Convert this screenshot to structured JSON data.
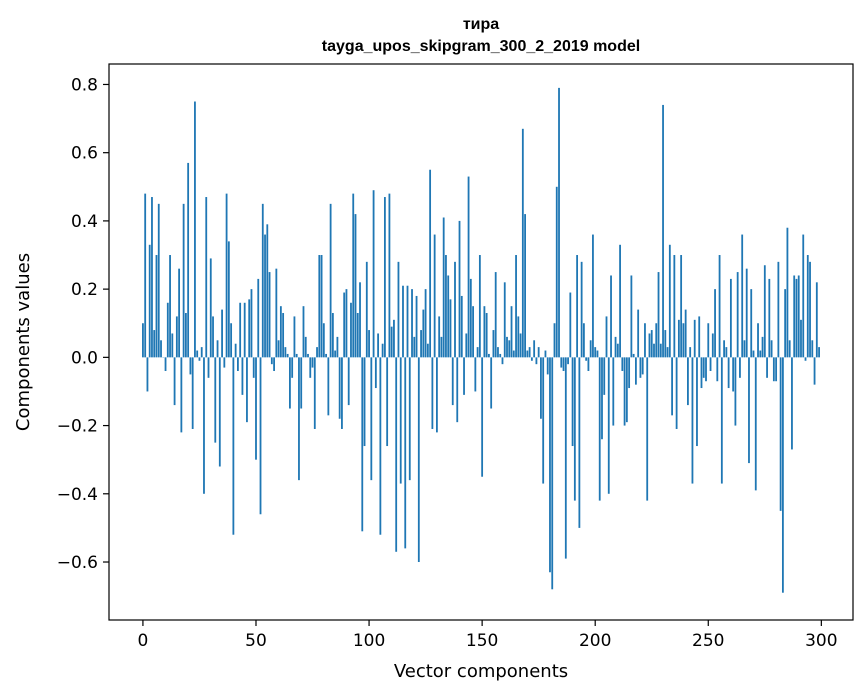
{
  "chart_data": {
    "type": "bar",
    "title": "тира",
    "subtitle": "tayga_upos_skipgram_300_2_2019 model",
    "xlabel": "Vector components",
    "ylabel": "Components values",
    "xlim": [
      -15,
      314
    ],
    "ylim": [
      -0.77,
      0.86
    ],
    "xticks": [
      0,
      50,
      100,
      150,
      200,
      250,
      300
    ],
    "yticks": [
      -0.6,
      -0.4,
      -0.2,
      0.0,
      0.2,
      0.4,
      0.6,
      0.8
    ],
    "ytick_labels": [
      "−0.6",
      "−0.4",
      "−0.2",
      "0.0",
      "0.2",
      "0.4",
      "0.6",
      "0.8"
    ],
    "bar_color": "#1f77b4",
    "grid": false,
    "legend": "none",
    "values": [
      0.1,
      0.48,
      -0.1,
      0.33,
      0.47,
      0.08,
      0.3,
      0.45,
      0.05,
      0.0,
      -0.04,
      0.16,
      0.3,
      0.07,
      -0.14,
      0.12,
      0.26,
      -0.22,
      0.45,
      0.13,
      0.57,
      -0.05,
      -0.21,
      0.75,
      0.02,
      -0.01,
      0.03,
      -0.4,
      0.47,
      -0.06,
      0.29,
      0.12,
      -0.25,
      0.05,
      -0.32,
      0.14,
      -0.03,
      0.48,
      0.34,
      0.1,
      -0.52,
      0.04,
      -0.04,
      0.16,
      -0.11,
      0.16,
      -0.19,
      0.17,
      0.2,
      -0.06,
      -0.3,
      0.23,
      -0.46,
      0.45,
      0.36,
      0.39,
      0.25,
      -0.02,
      -0.04,
      0.26,
      0.05,
      0.15,
      0.13,
      0.03,
      0.01,
      -0.15,
      -0.06,
      0.12,
      0.01,
      -0.36,
      -0.15,
      0.15,
      0.06,
      0.01,
      -0.06,
      -0.03,
      -0.21,
      0.03,
      0.3,
      0.3,
      0.1,
      0.01,
      -0.17,
      0.45,
      0.13,
      0.02,
      0.06,
      -0.18,
      -0.21,
      0.19,
      0.2,
      -0.14,
      0.16,
      0.48,
      0.42,
      0.13,
      0.22,
      -0.51,
      -0.26,
      0.28,
      0.08,
      -0.36,
      0.49,
      -0.09,
      0.07,
      -0.52,
      0.04,
      0.47,
      -0.26,
      0.48,
      0.09,
      0.11,
      -0.57,
      0.28,
      -0.37,
      0.21,
      -0.56,
      0.21,
      -0.36,
      0.2,
      0.06,
      0.18,
      -0.6,
      0.08,
      0.14,
      0.2,
      0.04,
      0.55,
      -0.21,
      0.36,
      -0.22,
      0.12,
      0.06,
      0.41,
      0.3,
      0.24,
      0.17,
      -0.14,
      0.28,
      -0.19,
      0.4,
      0.18,
      -0.11,
      0.07,
      0.53,
      0.23,
      0.15,
      -0.1,
      0.03,
      0.3,
      -0.35,
      0.15,
      0.13,
      0.01,
      -0.15,
      0.08,
      0.25,
      0.03,
      0.01,
      -0.02,
      0.22,
      0.06,
      0.05,
      0.15,
      0.02,
      0.3,
      0.12,
      0.07,
      0.67,
      0.42,
      0.02,
      0.03,
      -0.01,
      0.05,
      -0.02,
      0.03,
      -0.18,
      -0.37,
      0.02,
      -0.05,
      -0.63,
      -0.68,
      0.1,
      0.5,
      0.79,
      -0.03,
      -0.04,
      -0.59,
      -0.02,
      0.19,
      -0.26,
      -0.42,
      0.3,
      -0.5,
      0.28,
      0.1,
      -0.01,
      -0.04,
      0.05,
      0.36,
      0.03,
      0.02,
      -0.42,
      -0.24,
      -0.11,
      0.12,
      -0.4,
      0.24,
      -0.2,
      0.06,
      0.04,
      0.33,
      -0.04,
      -0.2,
      -0.19,
      -0.09,
      0.24,
      0.01,
      -0.08,
      0.14,
      -0.06,
      -0.05,
      0.1,
      -0.42,
      0.07,
      0.08,
      0.04,
      0.1,
      0.25,
      0.04,
      0.74,
      0.08,
      0.03,
      0.33,
      -0.17,
      0.3,
      -0.21,
      0.11,
      0.3,
      0.1,
      0.14,
      -0.14,
      0.03,
      -0.37,
      0.11,
      -0.26,
      0.12,
      -0.09,
      -0.06,
      -0.07,
      0.1,
      -0.04,
      0.07,
      0.2,
      -0.07,
      0.3,
      -0.37,
      0.05,
      0.03,
      -0.09,
      0.23,
      -0.1,
      -0.2,
      0.25,
      -0.06,
      0.36,
      0.05,
      0.26,
      -0.31,
      0.2,
      0.02,
      -0.39,
      0.1,
      0.02,
      0.06,
      0.27,
      -0.06,
      0.23,
      0.05,
      -0.07,
      -0.07,
      0.28,
      -0.45,
      -0.69,
      0.2,
      0.38,
      0.05,
      -0.27,
      0.24,
      0.23,
      0.24,
      0.11,
      0.36,
      -0.01,
      0.3,
      0.28,
      0.05,
      -0.08,
      0.22,
      0.03
    ]
  }
}
